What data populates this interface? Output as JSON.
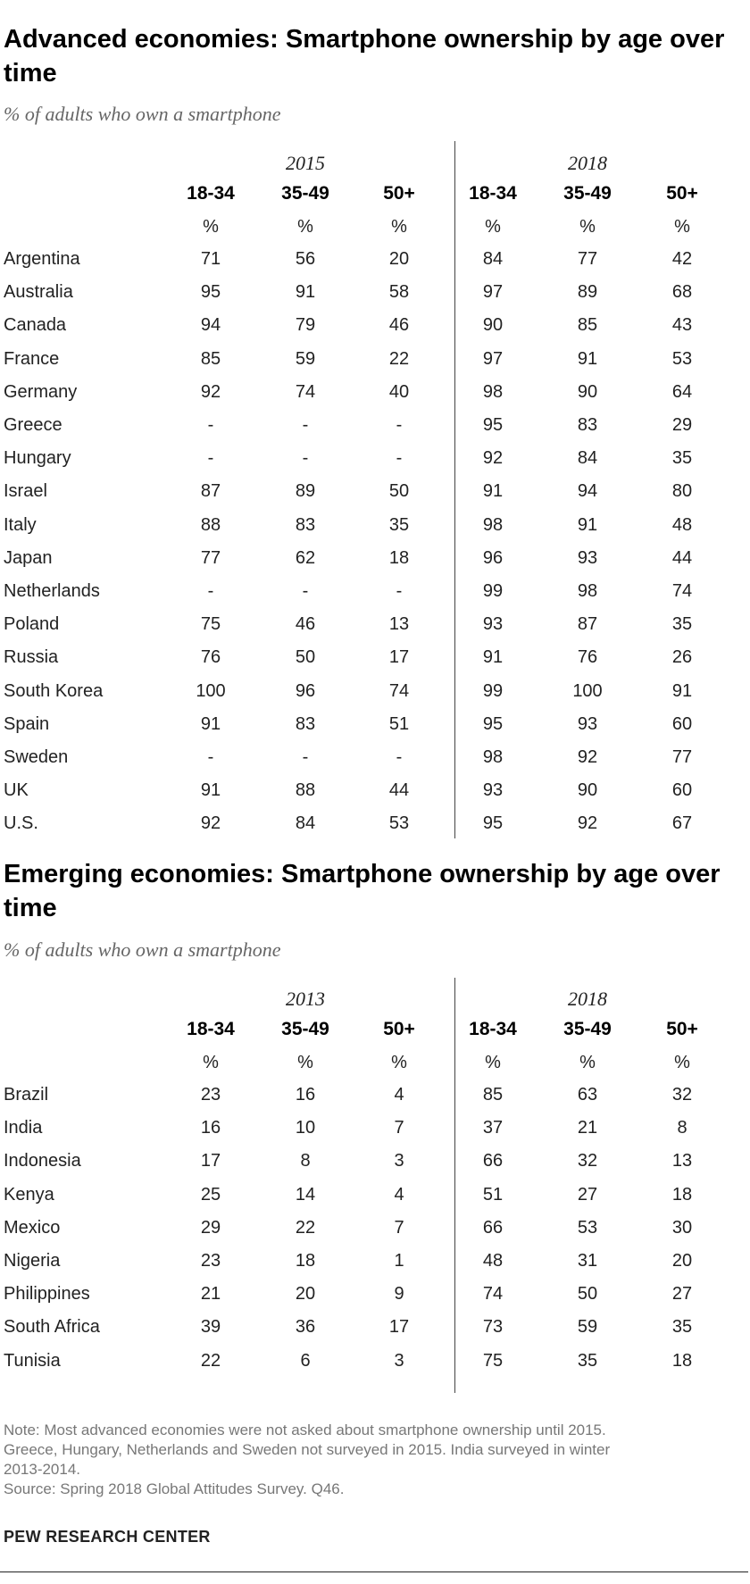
{
  "chart_data": [
    {
      "type": "table",
      "title": "Advanced economies: Smartphone ownership by age over time",
      "subtitle": "% of adults who own a smartphone",
      "year_groups": [
        "2015",
        "2018"
      ],
      "age_groups": [
        "18-34",
        "35-49",
        "50+"
      ],
      "unit_symbol": "%",
      "rows": [
        {
          "country": "Argentina",
          "values": [
            "71",
            "56",
            "20",
            "84",
            "77",
            "42"
          ]
        },
        {
          "country": "Australia",
          "values": [
            "95",
            "91",
            "58",
            "97",
            "89",
            "68"
          ]
        },
        {
          "country": "Canada",
          "values": [
            "94",
            "79",
            "46",
            "90",
            "85",
            "43"
          ]
        },
        {
          "country": "France",
          "values": [
            "85",
            "59",
            "22",
            "97",
            "91",
            "53"
          ]
        },
        {
          "country": "Germany",
          "values": [
            "92",
            "74",
            "40",
            "98",
            "90",
            "64"
          ]
        },
        {
          "country": "Greece",
          "values": [
            "-",
            "-",
            "-",
            "95",
            "83",
            "29"
          ]
        },
        {
          "country": "Hungary",
          "values": [
            "-",
            "-",
            "-",
            "92",
            "84",
            "35"
          ]
        },
        {
          "country": "Israel",
          "values": [
            "87",
            "89",
            "50",
            "91",
            "94",
            "80"
          ]
        },
        {
          "country": "Italy",
          "values": [
            "88",
            "83",
            "35",
            "98",
            "91",
            "48"
          ]
        },
        {
          "country": "Japan",
          "values": [
            "77",
            "62",
            "18",
            "96",
            "93",
            "44"
          ]
        },
        {
          "country": "Netherlands",
          "values": [
            "-",
            "-",
            "-",
            "99",
            "98",
            "74"
          ]
        },
        {
          "country": "Poland",
          "values": [
            "75",
            "46",
            "13",
            "93",
            "87",
            "35"
          ]
        },
        {
          "country": "Russia",
          "values": [
            "76",
            "50",
            "17",
            "91",
            "76",
            "26"
          ]
        },
        {
          "country": "South Korea",
          "values": [
            "100",
            "96",
            "74",
            "99",
            "100",
            "91"
          ]
        },
        {
          "country": "Spain",
          "values": [
            "91",
            "83",
            "51",
            "95",
            "93",
            "60"
          ]
        },
        {
          "country": "Sweden",
          "values": [
            "-",
            "-",
            "-",
            "98",
            "92",
            "77"
          ]
        },
        {
          "country": "UK",
          "values": [
            "91",
            "88",
            "44",
            "93",
            "90",
            "60"
          ]
        },
        {
          "country": "U.S.",
          "values": [
            "92",
            "84",
            "53",
            "95",
            "92",
            "67"
          ]
        }
      ]
    },
    {
      "type": "table",
      "title": "Emerging economies: Smartphone ownership by age over time",
      "subtitle": "% of adults who own a smartphone",
      "year_groups": [
        "2013",
        "2018"
      ],
      "age_groups": [
        "18-34",
        "35-49",
        "50+"
      ],
      "unit_symbol": "%",
      "rows": [
        {
          "country": "Brazil",
          "values": [
            "23",
            "16",
            "4",
            "85",
            "63",
            "32"
          ]
        },
        {
          "country": "India",
          "values": [
            "16",
            "10",
            "7",
            "37",
            "21",
            "8"
          ]
        },
        {
          "country": "Indonesia",
          "values": [
            "17",
            "8",
            "3",
            "66",
            "32",
            "13"
          ]
        },
        {
          "country": "Kenya",
          "values": [
            "25",
            "14",
            "4",
            "51",
            "27",
            "18"
          ]
        },
        {
          "country": "Mexico",
          "values": [
            "29",
            "22",
            "7",
            "66",
            "53",
            "30"
          ]
        },
        {
          "country": "Nigeria",
          "values": [
            "23",
            "18",
            "1",
            "48",
            "31",
            "20"
          ]
        },
        {
          "country": "Philippines",
          "values": [
            "21",
            "20",
            "9",
            "74",
            "50",
            "27"
          ]
        },
        {
          "country": "South Africa",
          "values": [
            "39",
            "36",
            "17",
            "73",
            "59",
            "35"
          ]
        },
        {
          "country": "Tunisia",
          "values": [
            "22",
            "6",
            "3",
            "75",
            "35",
            "18"
          ]
        }
      ]
    }
  ],
  "note_lines": [
    "Note: Most advanced economies were not asked about smartphone ownership until 2015.",
    "Greece, Hungary, Netherlands and Sweden not surveyed in 2015. India surveyed in winter",
    "2013-2014.",
    "Source: Spring 2018 Global Attitudes Survey. Q46."
  ],
  "organization": "PEW RESEARCH CENTER"
}
